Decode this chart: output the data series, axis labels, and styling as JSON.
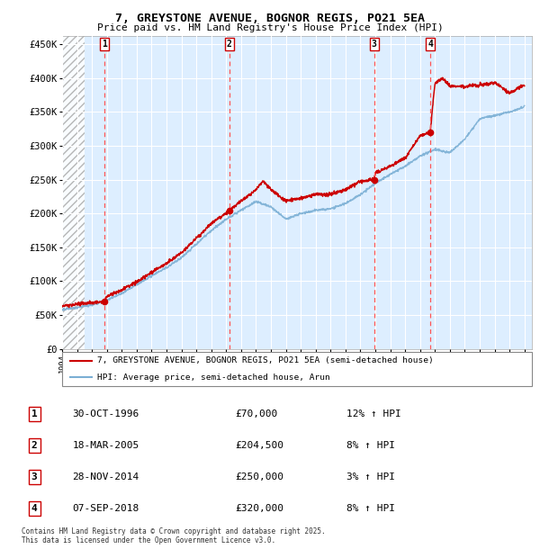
{
  "title1": "7, GREYSTONE AVENUE, BOGNOR REGIS, PO21 5EA",
  "title2": "Price paid vs. HM Land Registry's House Price Index (HPI)",
  "ylabel_ticks": [
    "£0",
    "£50K",
    "£100K",
    "£150K",
    "£200K",
    "£250K",
    "£300K",
    "£350K",
    "£400K",
    "£450K"
  ],
  "ytick_values": [
    0,
    50000,
    100000,
    150000,
    200000,
    250000,
    300000,
    350000,
    400000,
    450000
  ],
  "ylim": [
    0,
    462000
  ],
  "xlim_start": 1994.0,
  "xlim_end": 2025.5,
  "sale_date_years": [
    1996.833,
    2005.208,
    2014.917,
    2018.686
  ],
  "sale_prices": [
    70000,
    204500,
    250000,
    320000
  ],
  "sale_labels": [
    "1",
    "2",
    "3",
    "4"
  ],
  "legend_house": "7, GREYSTONE AVENUE, BOGNOR REGIS, PO21 5EA (semi-detached house)",
  "legend_hpi": "HPI: Average price, semi-detached house, Arun",
  "table_rows": [
    [
      "1",
      "30-OCT-1996",
      "£70,000",
      "12% ↑ HPI"
    ],
    [
      "2",
      "18-MAR-2005",
      "£204,500",
      "8% ↑ HPI"
    ],
    [
      "3",
      "28-NOV-2014",
      "£250,000",
      "3% ↑ HPI"
    ],
    [
      "4",
      "07-SEP-2018",
      "£320,000",
      "8% ↑ HPI"
    ]
  ],
  "footnote": "Contains HM Land Registry data © Crown copyright and database right 2025.\nThis data is licensed under the Open Government Licence v3.0.",
  "house_color": "#cc0000",
  "hpi_color": "#7bafd4",
  "background_color": "#ddeeff",
  "grid_color": "#ffffff",
  "dashed_line_color": "#ff5555",
  "hpi_anchors_x": [
    1994,
    1995,
    1996,
    1997,
    1998,
    1999,
    2000,
    2001,
    2002,
    2003,
    2004,
    2005,
    2006,
    2007,
    2008,
    2009,
    2010,
    2011,
    2012,
    2013,
    2014,
    2015,
    2016,
    2017,
    2018,
    2019,
    2020,
    2021,
    2022,
    2023,
    2024,
    2025
  ],
  "hpi_anchors_y": [
    58000,
    61000,
    65000,
    72000,
    82000,
    95000,
    108000,
    120000,
    135000,
    155000,
    175000,
    192000,
    205000,
    218000,
    210000,
    192000,
    200000,
    205000,
    207000,
    215000,
    228000,
    245000,
    258000,
    270000,
    285000,
    295000,
    290000,
    310000,
    340000,
    345000,
    350000,
    358000
  ],
  "house_anchors_x": [
    1994,
    1995,
    1996,
    1996.833,
    1997,
    1998,
    1999,
    2000,
    2001,
    2002,
    2003,
    2004,
    2005,
    2005.208,
    2006,
    2007,
    2007.5,
    2008,
    2009,
    2010,
    2011,
    2012,
    2013,
    2014,
    2014.917,
    2015,
    2016,
    2017,
    2018,
    2018.686,
    2019,
    2019.5,
    2020,
    2021,
    2022,
    2023,
    2024,
    2025
  ],
  "house_anchors_y": [
    63000,
    66000,
    68000,
    70000,
    77000,
    87000,
    99000,
    113000,
    126000,
    142000,
    163000,
    185000,
    200000,
    204500,
    218000,
    235000,
    248000,
    235000,
    218000,
    222000,
    228000,
    228000,
    235000,
    248000,
    250000,
    260000,
    270000,
    282000,
    315000,
    320000,
    393000,
    400000,
    388000,
    388000,
    390000,
    393000,
    378000,
    390000
  ]
}
